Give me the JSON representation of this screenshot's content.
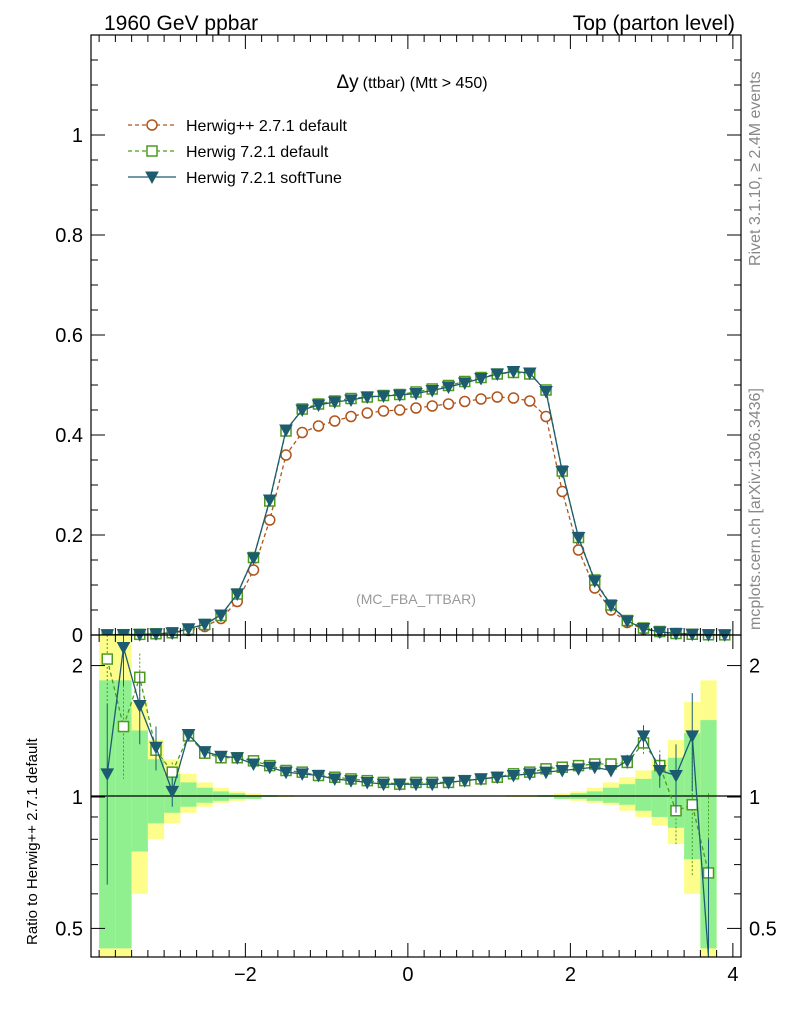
{
  "header": {
    "left": "1960 GeV ppbar",
    "right": "Top (parton level)"
  },
  "side_labels": {
    "rivet": "Rivet 3.1.10, ≥ 2.4M events",
    "mcplots": "mcplots.cern.ch [arXiv:1306.3436]"
  },
  "plot_title": {
    "delta": "Δy",
    "detail": "(ttbar) (Mtt > 450)"
  },
  "watermark": "(MC_FBA_TTBAR)",
  "ratio_ylabel": "Ratio to Herwig++ 2.7.1 default",
  "colors": {
    "herwigpp": "#b0541b",
    "herwig72": "#4e9a1f",
    "softtune": "#1d5b70",
    "band_green": "#90f090",
    "band_yellow": "#fdfd8c"
  },
  "chart_data": [
    {
      "type": "line",
      "panel": "main",
      "x": [
        -3.7,
        -3.5,
        -3.3,
        -3.1,
        -2.9,
        -2.7,
        -2.5,
        -2.3,
        -2.1,
        -1.9,
        -1.7,
        -1.5,
        -1.3,
        -1.1,
        -0.9,
        -0.7,
        -0.5,
        -0.3,
        -0.1,
        0.1,
        0.3,
        0.5,
        0.7,
        0.9,
        1.1,
        1.3,
        1.5,
        1.7,
        1.9,
        2.1,
        2.3,
        2.5,
        2.7,
        2.9,
        3.1,
        3.3,
        3.5,
        3.7,
        3.9
      ],
      "series": [
        {
          "name": "Herwig++ 2.7.1 default",
          "marker": "circle-open",
          "values": [
            0.0003,
            0.0004,
            0.0008,
            0.0018,
            0.004,
            0.009,
            0.017,
            0.033,
            0.067,
            0.13,
            0.23,
            0.36,
            0.405,
            0.418,
            0.428,
            0.437,
            0.444,
            0.448,
            0.45,
            0.454,
            0.458,
            0.462,
            0.467,
            0.472,
            0.476,
            0.474,
            0.468,
            0.437,
            0.287,
            0.17,
            0.094,
            0.05,
            0.025,
            0.012,
            0.006,
            0.003,
            0.0015,
            0.0005,
            0.0003
          ]
        },
        {
          "name": "Herwig 7.2.1 default",
          "marker": "square-open",
          "values": [
            0.0005,
            0.0006,
            0.0013,
            0.0025,
            0.0045,
            0.0115,
            0.021,
            0.039,
            0.082,
            0.155,
            0.268,
            0.408,
            0.452,
            0.462,
            0.468,
            0.473,
            0.476,
            0.479,
            0.481,
            0.486,
            0.492,
            0.499,
            0.507,
            0.515,
            0.522,
            0.525,
            0.522,
            0.49,
            0.328,
            0.195,
            0.11,
            0.06,
            0.029,
            0.014,
            0.007,
            0.003,
            0.0015,
            0.0005,
            0.0003
          ]
        },
        {
          "name": "Herwig 7.2.1 softTune",
          "marker": "triangle-down-filled",
          "values": [
            0.0003,
            0.0008,
            0.0012,
            0.0023,
            0.0041,
            0.0125,
            0.0215,
            0.04,
            0.082,
            0.154,
            0.27,
            0.41,
            0.45,
            0.46,
            0.466,
            0.47,
            0.476,
            0.478,
            0.48,
            0.483,
            0.489,
            0.496,
            0.504,
            0.513,
            0.522,
            0.527,
            0.524,
            0.487,
            0.327,
            0.195,
            0.108,
            0.059,
            0.028,
            0.013,
            0.006,
            0.003,
            0.0015,
            0.0005,
            0.0003
          ]
        }
      ],
      "xlim": [
        -3.9,
        4.1
      ],
      "ylim": [
        0,
        1.2
      ],
      "yticks": [
        0,
        0.2,
        0.4,
        0.6,
        0.8,
        1
      ],
      "legend": "top-left"
    },
    {
      "type": "line",
      "panel": "ratio",
      "ylabel": "Ratio to Herwig++ 2.7.1 default",
      "xticks": [
        -2,
        0,
        2,
        4
      ],
      "yticks": [
        0.5,
        1,
        2
      ],
      "yscale": "log",
      "xlim": [
        -3.9,
        4.1
      ],
      "ylim": [
        0.43,
        2.35
      ],
      "reference_line": 1,
      "x": [
        -3.7,
        -3.5,
        -3.3,
        -3.1,
        -2.9,
        -2.7,
        -2.5,
        -2.3,
        -2.1,
        -1.9,
        -1.7,
        -1.5,
        -1.3,
        -1.1,
        -0.9,
        -0.7,
        -0.5,
        -0.3,
        -0.1,
        0.1,
        0.3,
        0.5,
        0.7,
        0.9,
        1.1,
        1.3,
        1.5,
        1.7,
        1.9,
        2.1,
        2.3,
        2.5,
        2.7,
        2.9,
        3.1,
        3.3,
        3.5,
        3.7
      ],
      "band_green": [
        0.45,
        0.45,
        0.75,
        0.87,
        0.92,
        0.95,
        0.97,
        0.98,
        0.99,
        0.99,
        1.0,
        1.0,
        1.0,
        1.0,
        1.0,
        1.0,
        1.0,
        1.0,
        1.0,
        1.0,
        1.0,
        1.0,
        1.0,
        1.0,
        1.0,
        1.0,
        1.0,
        1.0,
        0.99,
        0.99,
        0.98,
        0.97,
        0.96,
        0.93,
        0.9,
        0.85,
        0.72,
        0.45
      ],
      "band_green_upper": [
        1.85,
        1.85,
        1.42,
        1.22,
        1.13,
        1.08,
        1.05,
        1.03,
        1.02,
        1.01,
        1.01,
        1.0,
        1.0,
        1.0,
        1.0,
        1.0,
        1.0,
        1.0,
        1.0,
        1.0,
        1.0,
        1.0,
        1.0,
        1.0,
        1.0,
        1.0,
        1.0,
        1.01,
        1.01,
        1.02,
        1.03,
        1.05,
        1.07,
        1.1,
        1.15,
        1.23,
        1.4,
        1.5
      ],
      "band_yellow_lower": [
        0.43,
        0.43,
        0.6,
        0.8,
        0.87,
        0.92,
        0.95,
        0.97,
        0.98,
        0.99,
        1.0,
        1.0,
        1.0,
        1.0,
        1.0,
        1.0,
        1.0,
        1.0,
        1.0,
        1.0,
        1.0,
        1.0,
        1.0,
        1.0,
        1.0,
        1.0,
        1.0,
        1.0,
        0.99,
        0.98,
        0.97,
        0.96,
        0.93,
        0.9,
        0.86,
        0.78,
        0.6,
        0.43
      ],
      "band_yellow_upper": [
        2.35,
        2.35,
        1.65,
        1.35,
        1.22,
        1.13,
        1.08,
        1.05,
        1.03,
        1.02,
        1.01,
        1.01,
        1.0,
        1.0,
        1.0,
        1.0,
        1.0,
        1.0,
        1.0,
        1.0,
        1.0,
        1.0,
        1.0,
        1.0,
        1.0,
        1.01,
        1.01,
        1.01,
        1.02,
        1.03,
        1.05,
        1.08,
        1.11,
        1.15,
        1.22,
        1.35,
        1.65,
        1.85
      ],
      "series": [
        {
          "name": "Herwig 7.2.1 default",
          "values": [
            2.07,
            1.45,
            1.88,
            1.28,
            1.14,
            1.38,
            1.26,
            1.23,
            1.23,
            1.21,
            1.18,
            1.15,
            1.14,
            1.12,
            1.11,
            1.1,
            1.09,
            1.08,
            1.07,
            1.08,
            1.08,
            1.08,
            1.09,
            1.1,
            1.11,
            1.13,
            1.14,
            1.16,
            1.17,
            1.18,
            1.19,
            1.19,
            1.2,
            1.33,
            1.18,
            0.93,
            0.96,
            0.67
          ],
          "err": [
            0.45,
            0.35,
            0.25,
            0.12,
            0.06,
            0.04,
            0.02,
            0.02,
            0.01,
            0.01,
            0.01,
            0.01,
            0.01,
            0.01,
            0.01,
            0.01,
            0.01,
            0.01,
            0.01,
            0.01,
            0.01,
            0.01,
            0.01,
            0.01,
            0.01,
            0.01,
            0.01,
            0.01,
            0.01,
            0.01,
            0.02,
            0.02,
            0.04,
            0.08,
            0.1,
            0.15,
            0.3,
            0.35
          ]
        },
        {
          "name": "Herwig 7.2.1 softTune",
          "values": [
            1.13,
            2.2,
            1.62,
            1.3,
            1.03,
            1.39,
            1.27,
            1.24,
            1.23,
            1.19,
            1.17,
            1.14,
            1.13,
            1.12,
            1.1,
            1.09,
            1.08,
            1.07,
            1.07,
            1.07,
            1.07,
            1.08,
            1.09,
            1.1,
            1.11,
            1.12,
            1.13,
            1.14,
            1.15,
            1.16,
            1.17,
            1.15,
            1.21,
            1.38,
            1.15,
            1.12,
            1.38,
            0.4
          ],
          "err": [
            0.5,
            0.4,
            0.3,
            0.15,
            0.08,
            0.04,
            0.02,
            0.02,
            0.01,
            0.01,
            0.01,
            0.01,
            0.01,
            0.01,
            0.01,
            0.01,
            0.01,
            0.01,
            0.01,
            0.01,
            0.01,
            0.01,
            0.01,
            0.01,
            0.01,
            0.01,
            0.01,
            0.01,
            0.01,
            0.01,
            0.02,
            0.02,
            0.04,
            0.08,
            0.1,
            0.2,
            0.35,
            0.4
          ]
        }
      ]
    }
  ]
}
